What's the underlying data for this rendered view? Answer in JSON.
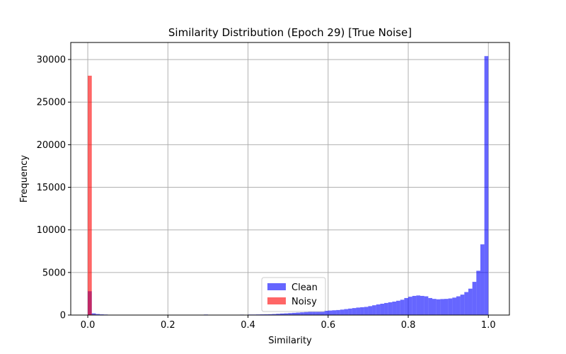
{
  "chart_data": {
    "type": "bar",
    "title": "Similarity Distribution (Epoch 29) [True Noise]",
    "xlabel": "Similarity",
    "ylabel": "Frequency",
    "xlim": [
      -0.0425,
      1.0525
    ],
    "ylim": [
      0,
      32000
    ],
    "xticks": [
      "0.0",
      "0.2",
      "0.4",
      "0.6",
      "0.8",
      "1.0"
    ],
    "yticks": [
      "0",
      "5000",
      "10000",
      "15000",
      "20000",
      "25000",
      "30000"
    ],
    "grid": true,
    "legend_position": "lower-center",
    "bin_width": 0.01,
    "series": [
      {
        "name": "Clean",
        "color": "#0000ff",
        "alpha": 0.6,
        "bins": [
          [
            0.0,
            2800
          ],
          [
            0.01,
            200
          ],
          [
            0.02,
            120
          ],
          [
            0.03,
            80
          ],
          [
            0.04,
            60
          ],
          [
            0.05,
            40
          ],
          [
            0.12,
            40
          ],
          [
            0.15,
            40
          ],
          [
            0.18,
            40
          ],
          [
            0.29,
            60
          ],
          [
            0.32,
            40
          ],
          [
            0.34,
            40
          ],
          [
            0.36,
            40
          ],
          [
            0.38,
            50
          ],
          [
            0.4,
            60
          ],
          [
            0.41,
            60
          ],
          [
            0.42,
            70
          ],
          [
            0.43,
            80
          ],
          [
            0.44,
            90
          ],
          [
            0.45,
            100
          ],
          [
            0.46,
            120
          ],
          [
            0.47,
            150
          ],
          [
            0.48,
            180
          ],
          [
            0.49,
            200
          ],
          [
            0.5,
            230
          ],
          [
            0.51,
            260
          ],
          [
            0.52,
            290
          ],
          [
            0.53,
            320
          ],
          [
            0.54,
            350
          ],
          [
            0.55,
            380
          ],
          [
            0.56,
            410
          ],
          [
            0.57,
            440
          ],
          [
            0.58,
            470
          ],
          [
            0.59,
            500
          ],
          [
            0.6,
            530
          ],
          [
            0.61,
            560
          ],
          [
            0.62,
            590
          ],
          [
            0.63,
            640
          ],
          [
            0.64,
            700
          ],
          [
            0.65,
            760
          ],
          [
            0.66,
            820
          ],
          [
            0.67,
            880
          ],
          [
            0.68,
            920
          ],
          [
            0.69,
            960
          ],
          [
            0.7,
            1050
          ],
          [
            0.71,
            1150
          ],
          [
            0.72,
            1250
          ],
          [
            0.73,
            1330
          ],
          [
            0.74,
            1420
          ],
          [
            0.75,
            1500
          ],
          [
            0.76,
            1580
          ],
          [
            0.77,
            1680
          ],
          [
            0.78,
            1800
          ],
          [
            0.79,
            2000
          ],
          [
            0.8,
            2150
          ],
          [
            0.81,
            2250
          ],
          [
            0.82,
            2300
          ],
          [
            0.83,
            2250
          ],
          [
            0.84,
            2200
          ],
          [
            0.85,
            2000
          ],
          [
            0.86,
            1900
          ],
          [
            0.87,
            1850
          ],
          [
            0.88,
            1880
          ],
          [
            0.89,
            1900
          ],
          [
            0.9,
            1950
          ],
          [
            0.91,
            2050
          ],
          [
            0.92,
            2200
          ],
          [
            0.93,
            2400
          ],
          [
            0.94,
            2700
          ],
          [
            0.95,
            3100
          ],
          [
            0.96,
            3900
          ],
          [
            0.97,
            5200
          ],
          [
            0.98,
            8300
          ],
          [
            0.99,
            30400
          ]
        ]
      },
      {
        "name": "Noisy",
        "color": "#ff0000",
        "alpha": 0.6,
        "bins": [
          [
            0.0,
            28100
          ],
          [
            0.01,
            60
          ]
        ]
      }
    ]
  }
}
